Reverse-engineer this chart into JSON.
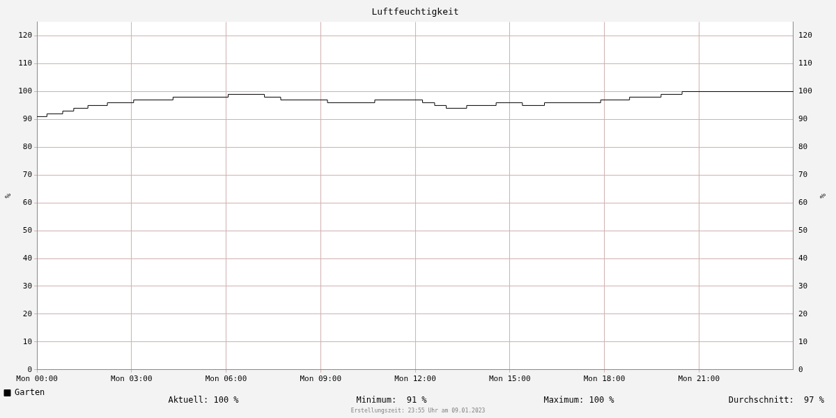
{
  "chart_data": {
    "type": "step",
    "title": "Luftfeuchtigkeit",
    "ylabel": "%",
    "y2label": "%",
    "x": [
      "2023-01-09T00:00",
      "2023-01-09T00:19",
      "2023-01-09T00:49",
      "2023-01-09T01:10",
      "2023-01-09T01:37",
      "2023-01-09T02:14",
      "2023-01-09T03:04",
      "2023-01-09T04:19",
      "2023-01-09T06:04",
      "2023-01-09T07:13",
      "2023-01-09T07:44",
      "2023-01-09T09:13",
      "2023-01-09T10:43",
      "2023-01-09T12:14",
      "2023-01-09T12:37",
      "2023-01-09T12:59",
      "2023-01-09T13:38",
      "2023-01-09T14:34",
      "2023-01-09T15:24",
      "2023-01-09T16:06",
      "2023-01-09T17:53",
      "2023-01-09T18:48",
      "2023-01-09T19:48",
      "2023-01-09T20:28",
      "2023-01-10T00:00"
    ],
    "series": [
      {
        "name": "Garten",
        "color": "#000000",
        "values": [
          91,
          92,
          93,
          94,
          95,
          96,
          97,
          98,
          99,
          98,
          97,
          96,
          97,
          96,
          95,
          94,
          95,
          96,
          95,
          96,
          97,
          98,
          99,
          100,
          100
        ]
      }
    ],
    "xlim": [
      "2023-01-09T00:00",
      "2023-01-10T00:00"
    ],
    "xticks": [
      {
        "value": "2023-01-09T00:00",
        "label": "Mon 00:00"
      },
      {
        "value": "2023-01-09T03:00",
        "label": "Mon 03:00"
      },
      {
        "value": "2023-01-09T06:00",
        "label": "Mon 06:00"
      },
      {
        "value": "2023-01-09T09:00",
        "label": "Mon 09:00"
      },
      {
        "value": "2023-01-09T12:00",
        "label": "Mon 12:00"
      },
      {
        "value": "2023-01-09T15:00",
        "label": "Mon 15:00"
      },
      {
        "value": "2023-01-09T18:00",
        "label": "Mon 18:00"
      },
      {
        "value": "2023-01-09T21:00",
        "label": "Mon 21:00"
      }
    ],
    "ylim": [
      0,
      125
    ],
    "yticks": [
      0,
      10,
      20,
      30,
      40,
      50,
      60,
      70,
      80,
      90,
      100,
      110,
      120
    ],
    "y2lim": [
      0,
      125
    ],
    "y2ticks": [
      0,
      10,
      20,
      30,
      40,
      50,
      60,
      70,
      80,
      90,
      100,
      110,
      120
    ],
    "grid": true,
    "legend": "bottom left",
    "marker": "none",
    "line_style": "solid",
    "annotations": [
      "Aktuell: 100 %",
      "Minimum:  91 %",
      "Maximum: 100 %",
      "Durchschnitt:  97 %",
      "Erstellungszeit: 23:55 Uhr am 09.01.2023"
    ]
  }
}
